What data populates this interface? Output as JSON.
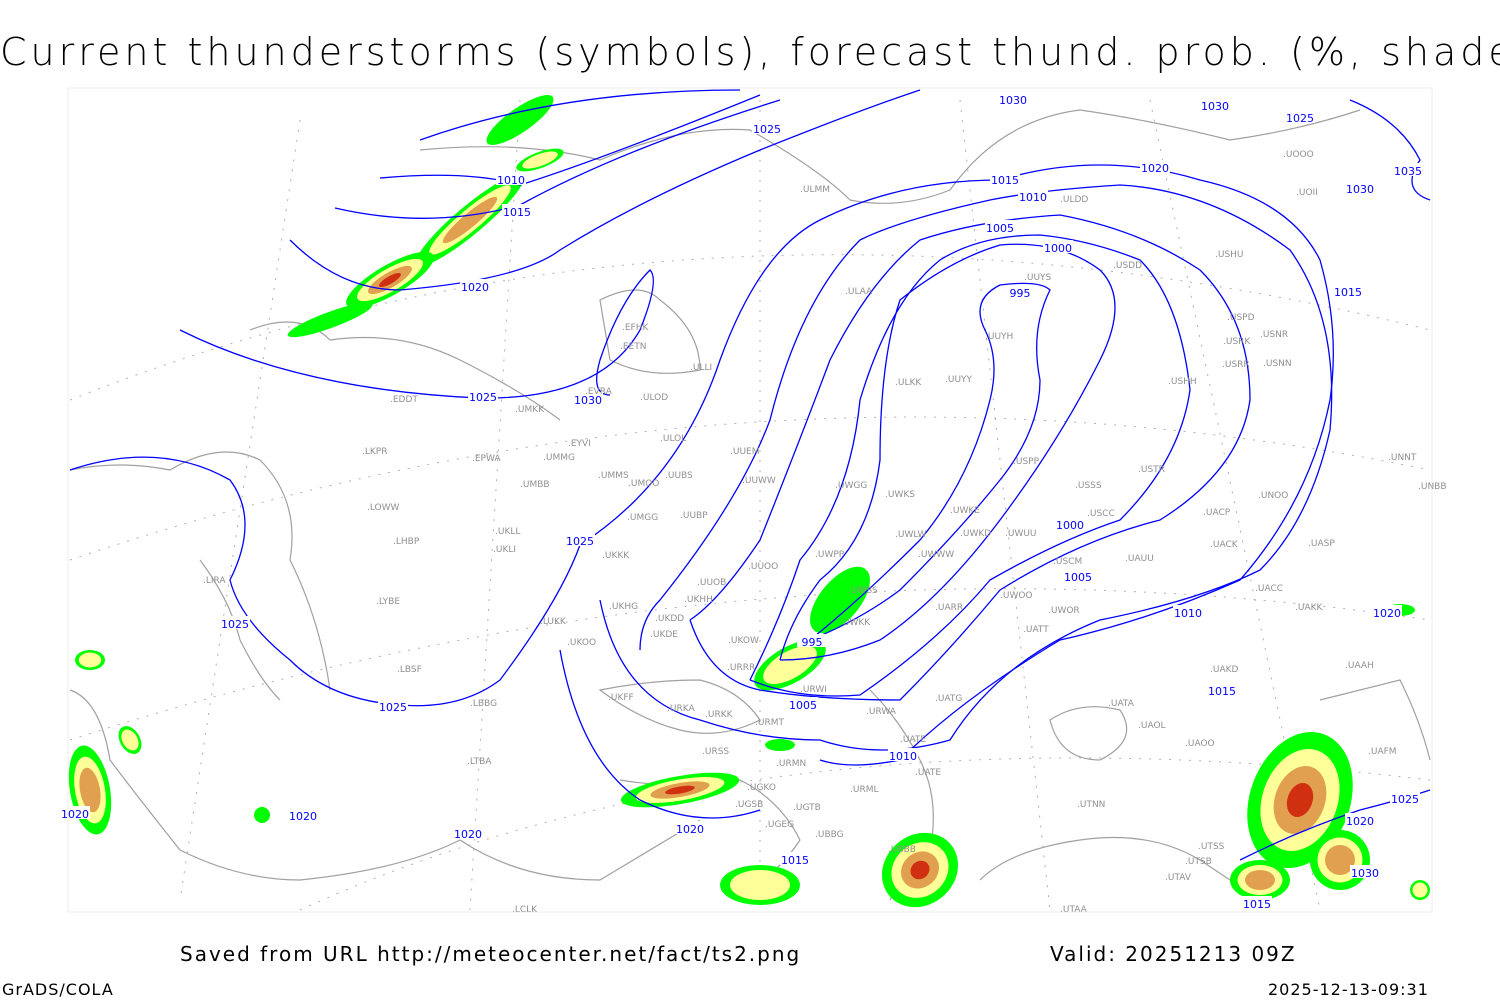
{
  "title": "Current thunderstorms (symbols), forecast thund. prob. (%, shaded)",
  "footer": {
    "source": "Saved from URL http://meteocenter.net/fact/ts2.png",
    "valid": "Valid: 20251213 09Z",
    "software": "GrADS/COLA",
    "timestamp": "2025-12-13-09:31"
  },
  "colors": {
    "isobar": "#0000ff",
    "coastline": "#a0a0a0",
    "prob_low": "#00ff00",
    "prob_mid": "#ffff99",
    "prob_high": "#e0a050",
    "prob_max": "#d03010"
  },
  "isobar_labels": [
    "1030",
    "1030",
    "1025",
    "1025",
    "1035",
    "1030",
    "1020",
    "1015",
    "1010",
    "1010",
    "1015",
    "1005",
    "1000",
    "995",
    "1015",
    "1020",
    "1025",
    "1030",
    "1025",
    "1000",
    "1005",
    "1010",
    "1020",
    "1025",
    "995",
    "1015",
    "1025",
    "1005",
    "1010",
    "1025",
    "1020",
    "1020",
    "1020",
    "1020",
    "1015",
    "1030",
    "1015",
    "1020"
  ],
  "stations": [
    "ULMM",
    "ULAA",
    "EFHK",
    "EETN",
    "EVRA",
    "ULOD",
    "ULLI",
    "EDDT",
    "UMKK",
    "EYVI",
    "ULOL",
    "UUEM",
    "LKPR",
    "EPWA",
    "UMMG",
    "UMMS",
    "UMOO",
    "UUBS",
    "UUWW",
    "UMBB",
    "LOWW",
    "UKLL",
    "UKLI",
    "UMGG",
    "UUBP",
    "LHBP",
    "UKKK",
    "LIRA",
    "UUOB",
    "UUOO",
    "LYBE",
    "UKHH",
    "UKHG",
    "UKDD",
    "LUKK",
    "UKDE",
    "UKOO",
    "UKOW",
    "LBSF",
    "URRR",
    "UKFF",
    "URKA",
    "LBBG",
    "URKK",
    "URMT",
    "URSS",
    "URMN",
    "URWI",
    "URWA",
    "UATG",
    "LTBA",
    "UGKO",
    "UGSB",
    "UGTB",
    "URML",
    "UGEG",
    "UBBG",
    "UBBB",
    "UTAA",
    "LCLK",
    "ULKK",
    "UUYY",
    "UUYS",
    "UUYH",
    "USPP",
    "USSS",
    "USTR",
    "USHH",
    "USDD",
    "USHU",
    "ULDD",
    "UOOO",
    "UOII",
    "USRK",
    "USPD",
    "USNR",
    "USRR",
    "USNN",
    "UWGG",
    "UWKS",
    "UWKE",
    "UWKD",
    "UWUU",
    "UWLW",
    "UWWW",
    "UWPP",
    "UWSS",
    "UWKK",
    "UWOO",
    "UARR",
    "UWOR",
    "USCC",
    "USCM",
    "UATT",
    "UAUU",
    "UACP",
    "UACK",
    "UASP",
    "UNOO",
    "UACC",
    "UAKK",
    "UAKD",
    "UAAH",
    "UATA",
    "UAOL",
    "UAOO",
    "UATE",
    "UTNN",
    "UTSS",
    "UTSB",
    "UTAV",
    "UAFM",
    "UNNT",
    "UNBB",
    "UATE"
  ]
}
